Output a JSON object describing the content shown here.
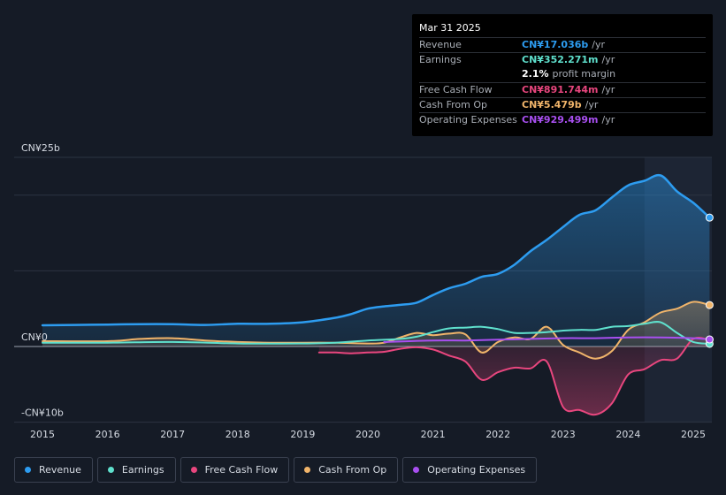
{
  "tooltip": {
    "date": "Mar 31 2025",
    "rows": [
      {
        "label": "Revenue",
        "value": "CN¥17.036b",
        "unit": "/yr",
        "color": "#2d9cf0"
      },
      {
        "label": "Earnings",
        "value": "CN¥352.271m",
        "unit": "/yr",
        "color": "#5fe0cd"
      },
      {
        "label": "",
        "value": "2.1%",
        "unit": "profit margin",
        "color": "#ffffff"
      },
      {
        "label": "Free Cash Flow",
        "value": "CN¥891.744m",
        "unit": "/yr",
        "color": "#e8467e"
      },
      {
        "label": "Cash From Op",
        "value": "CN¥5.479b",
        "unit": "/yr",
        "color": "#f0b46a"
      },
      {
        "label": "Operating Expenses",
        "value": "CN¥929.499m",
        "unit": "/yr",
        "color": "#a84ff0"
      }
    ]
  },
  "legend": [
    {
      "label": "Revenue",
      "color": "#2d9cf0"
    },
    {
      "label": "Earnings",
      "color": "#5fe0cd"
    },
    {
      "label": "Free Cash Flow",
      "color": "#e8467e"
    },
    {
      "label": "Cash From Op",
      "color": "#f0b46a"
    },
    {
      "label": "Operating Expenses",
      "color": "#a84ff0"
    }
  ],
  "chart_data": {
    "type": "line",
    "ylim": [
      -10,
      25
    ],
    "xlim": [
      2014.7,
      2025.25
    ],
    "y_tick_labels": [
      {
        "value": 25,
        "label": "CN¥25b"
      },
      {
        "value": 0,
        "label": "CN¥0"
      },
      {
        "value": -10,
        "label": "-CN¥10b"
      }
    ],
    "x_ticks": [
      2015,
      2016,
      2017,
      2018,
      2019,
      2020,
      2021,
      2022,
      2023,
      2024,
      2025
    ],
    "x_tick_labels": [
      "2015",
      "2016",
      "2017",
      "2018",
      "2019",
      "2020",
      "2021",
      "2022",
      "2023",
      "2024",
      "2025"
    ],
    "forecast_shade_from": 2024.25,
    "series": [
      {
        "name": "Revenue",
        "color": "#2d9cf0",
        "fill": true,
        "points": [
          [
            2015,
            2.8
          ],
          [
            2015.5,
            2.85
          ],
          [
            2016,
            2.9
          ],
          [
            2016.5,
            2.95
          ],
          [
            2017,
            2.95
          ],
          [
            2017.5,
            2.85
          ],
          [
            2018,
            3.0
          ],
          [
            2018.5,
            3.0
          ],
          [
            2019,
            3.2
          ],
          [
            2019.5,
            3.8
          ],
          [
            2019.75,
            4.3
          ],
          [
            2020,
            5.0
          ],
          [
            2020.25,
            5.3
          ],
          [
            2020.5,
            5.5
          ],
          [
            2020.75,
            5.8
          ],
          [
            2021,
            6.8
          ],
          [
            2021.25,
            7.7
          ],
          [
            2021.5,
            8.3
          ],
          [
            2021.75,
            9.2
          ],
          [
            2022,
            9.6
          ],
          [
            2022.25,
            10.8
          ],
          [
            2022.5,
            12.6
          ],
          [
            2022.75,
            14.1
          ],
          [
            2023,
            15.8
          ],
          [
            2023.25,
            17.4
          ],
          [
            2023.5,
            18.0
          ],
          [
            2023.75,
            19.7
          ],
          [
            2024,
            21.3
          ],
          [
            2024.25,
            21.9
          ],
          [
            2024.5,
            22.6
          ],
          [
            2024.75,
            20.5
          ],
          [
            2025,
            19.0
          ],
          [
            2025.25,
            17.036
          ]
        ]
      },
      {
        "name": "Earnings",
        "color": "#5fe0cd",
        "points": [
          [
            2015,
            0.5
          ],
          [
            2016,
            0.5
          ],
          [
            2017,
            0.6
          ],
          [
            2018,
            0.4
          ],
          [
            2019,
            0.4
          ],
          [
            2019.5,
            0.5
          ],
          [
            2020,
            0.8
          ],
          [
            2020.5,
            1.0
          ],
          [
            2020.75,
            1.3
          ],
          [
            2021,
            1.9
          ],
          [
            2021.25,
            2.4
          ],
          [
            2021.5,
            2.5
          ],
          [
            2021.75,
            2.6
          ],
          [
            2022,
            2.3
          ],
          [
            2022.25,
            1.8
          ],
          [
            2022.5,
            1.8
          ],
          [
            2022.75,
            1.9
          ],
          [
            2023,
            2.1
          ],
          [
            2023.25,
            2.2
          ],
          [
            2023.5,
            2.2
          ],
          [
            2023.75,
            2.6
          ],
          [
            2024,
            2.7
          ],
          [
            2024.25,
            3.0
          ],
          [
            2024.5,
            3.2
          ],
          [
            2024.75,
            1.8
          ],
          [
            2025,
            0.6
          ],
          [
            2025.25,
            0.352
          ]
        ]
      },
      {
        "name": "Free Cash Flow",
        "color": "#e8467e",
        "fill": true,
        "points": [
          [
            2019.25,
            -0.8
          ],
          [
            2019.5,
            -0.8
          ],
          [
            2019.75,
            -0.9
          ],
          [
            2020,
            -0.8
          ],
          [
            2020.25,
            -0.7
          ],
          [
            2020.5,
            -0.3
          ],
          [
            2020.75,
            -0.1
          ],
          [
            2021,
            -0.4
          ],
          [
            2021.25,
            -1.2
          ],
          [
            2021.5,
            -2.0
          ],
          [
            2021.75,
            -4.4
          ],
          [
            2022,
            -3.4
          ],
          [
            2022.25,
            -2.8
          ],
          [
            2022.5,
            -2.9
          ],
          [
            2022.75,
            -2.0
          ],
          [
            2023,
            -8.0
          ],
          [
            2023.25,
            -8.4
          ],
          [
            2023.5,
            -9.0
          ],
          [
            2023.75,
            -7.5
          ],
          [
            2024,
            -3.7
          ],
          [
            2024.25,
            -3.0
          ],
          [
            2024.5,
            -1.8
          ],
          [
            2024.75,
            -1.6
          ],
          [
            2025,
            1.0
          ],
          [
            2025.25,
            0.892
          ]
        ]
      },
      {
        "name": "Cash From Op",
        "color": "#f0b46a",
        "fill": true,
        "points": [
          [
            2015,
            0.7
          ],
          [
            2016,
            0.7
          ],
          [
            2016.5,
            1.0
          ],
          [
            2017,
            1.1
          ],
          [
            2017.5,
            0.8
          ],
          [
            2018,
            0.6
          ],
          [
            2018.5,
            0.5
          ],
          [
            2019,
            0.5
          ],
          [
            2019.5,
            0.5
          ],
          [
            2020,
            0.4
          ],
          [
            2020.25,
            0.5
          ],
          [
            2020.5,
            1.2
          ],
          [
            2020.75,
            1.8
          ],
          [
            2021,
            1.5
          ],
          [
            2021.25,
            1.7
          ],
          [
            2021.5,
            1.6
          ],
          [
            2021.75,
            -0.8
          ],
          [
            2022,
            0.6
          ],
          [
            2022.25,
            1.2
          ],
          [
            2022.5,
            1.0
          ],
          [
            2022.75,
            2.6
          ],
          [
            2023,
            0.2
          ],
          [
            2023.25,
            -0.8
          ],
          [
            2023.5,
            -1.6
          ],
          [
            2023.75,
            -0.6
          ],
          [
            2024,
            2.2
          ],
          [
            2024.25,
            3.2
          ],
          [
            2024.5,
            4.5
          ],
          [
            2024.75,
            5.0
          ],
          [
            2025,
            5.9
          ],
          [
            2025.25,
            5.479
          ]
        ]
      },
      {
        "name": "Operating Expenses",
        "color": "#a84ff0",
        "points": [
          [
            2020.25,
            0.6
          ],
          [
            2021,
            0.8
          ],
          [
            2021.5,
            0.8
          ],
          [
            2022,
            0.9
          ],
          [
            2022.5,
            1.0
          ],
          [
            2023,
            1.1
          ],
          [
            2023.5,
            1.1
          ],
          [
            2024,
            1.2
          ],
          [
            2024.5,
            1.2
          ],
          [
            2025,
            1.1
          ],
          [
            2025.25,
            0.929
          ]
        ]
      }
    ]
  }
}
